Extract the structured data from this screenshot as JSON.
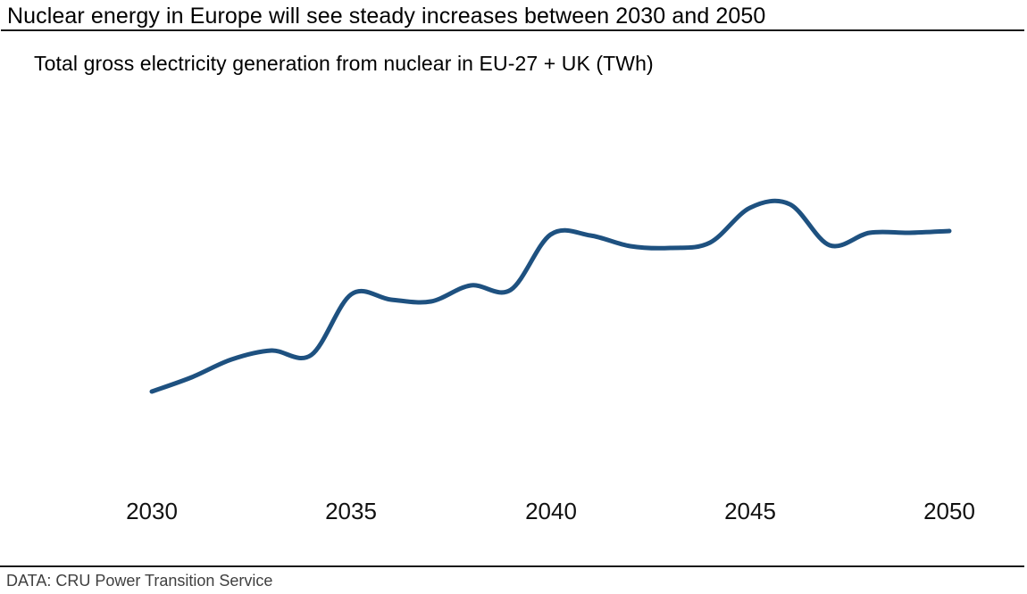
{
  "page": {
    "title": "Nuclear energy in Europe will see steady increases between 2030 and 2050",
    "subtitle": "Total gross electricity generation from nuclear in EU-27 + UK (TWh)",
    "source": "DATA: CRU Power Transition Service"
  },
  "colors": {
    "line": "#1e5180",
    "title_text": "#000000",
    "tick_text": "#111111",
    "source_text": "#3f3f3f",
    "rule": "#1a1a1a",
    "background": "#ffffff"
  },
  "chart_data": {
    "type": "line",
    "title": "Nuclear energy in Europe will see steady increases between 2030 and 2050",
    "subtitle": "Total gross electricity generation from nuclear in EU-27 + UK (TWh)",
    "xlabel": "",
    "ylabel": "TWh",
    "y_axis_labels_shown": false,
    "gridlines": false,
    "legend": false,
    "smoothed_line": true,
    "units_note": "No y-axis tick values are shown in the chart; series values below are relative estimates read from line height (unitless).",
    "x": [
      2030,
      2031,
      2032,
      2033,
      2034,
      2035,
      2036,
      2037,
      2038,
      2039,
      2040,
      2041,
      2042,
      2043,
      2044,
      2045,
      2046,
      2047,
      2048,
      2049,
      2050
    ],
    "x_ticks": [
      "2030",
      "2035",
      "2040",
      "2045",
      "2050"
    ],
    "series": [
      {
        "name": "Total gross electricity generation from nuclear in EU-27 + UK",
        "values": [
          21,
          37,
          57,
          67,
          62,
          130,
          124,
          122,
          140,
          135,
          197,
          196,
          184,
          182,
          188,
          227,
          231,
          185,
          199,
          199,
          201
        ]
      }
    ]
  }
}
